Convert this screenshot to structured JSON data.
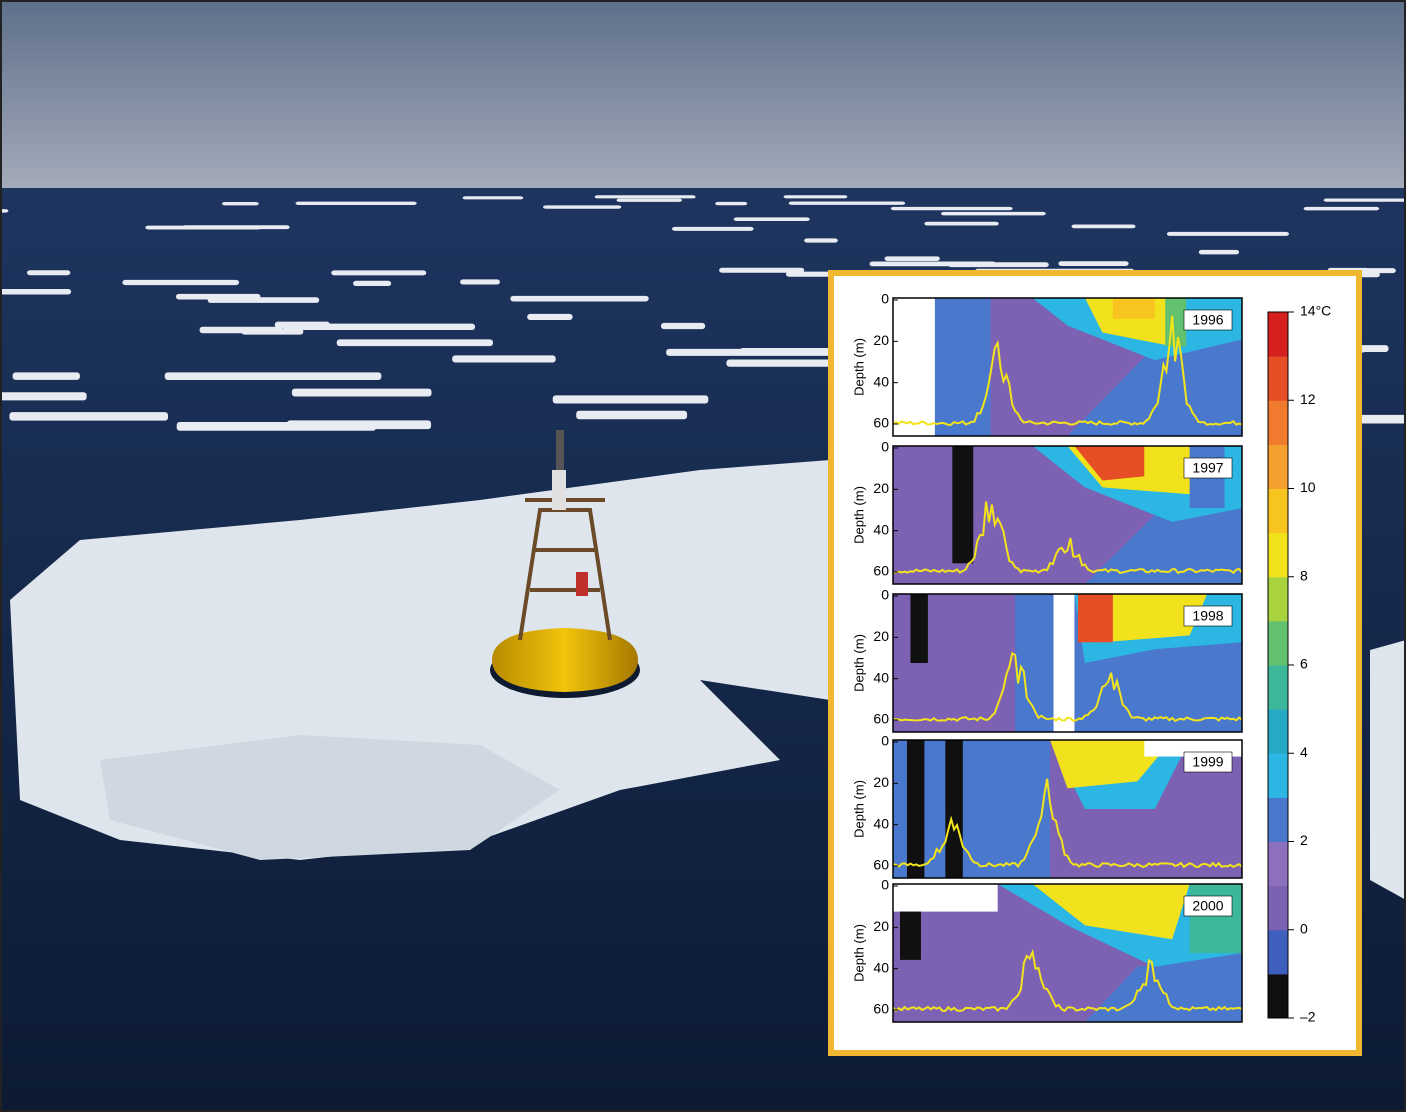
{
  "inset": {
    "panels": [
      {
        "label": "1996"
      },
      {
        "label": "1997"
      },
      {
        "label": "1998"
      },
      {
        "label": "1999"
      },
      {
        "label": "2000"
      }
    ],
    "y_label": "Depth (m)",
    "depth_ticks": [
      0,
      20,
      40,
      60
    ],
    "colorbar": {
      "ticks": [
        {
          "value": -2,
          "label": "–2"
        },
        0,
        2,
        4,
        6,
        8,
        10,
        12,
        {
          "value": 14,
          "label": "14°C"
        }
      ],
      "colors": [
        "#101010",
        "#3f5fbf",
        "#7d62b4",
        "#8c70bd",
        "#4a78cc",
        "#2bb6e4",
        "#25a9c4",
        "#3db79a",
        "#62c16e",
        "#a9d23f",
        "#f2e21d",
        "#f8c41f",
        "#f3a02e",
        "#f07a2e",
        "#e64e26",
        "#d62020"
      ]
    }
  }
}
